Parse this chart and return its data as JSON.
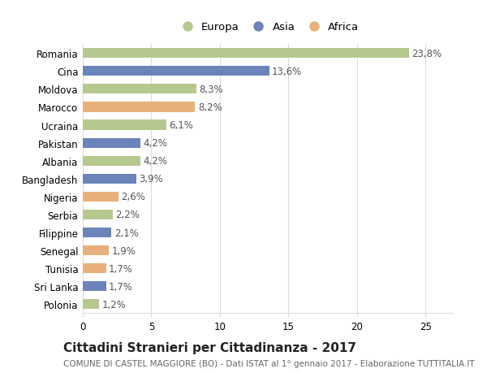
{
  "categories": [
    "Romania",
    "Cina",
    "Moldova",
    "Marocco",
    "Ucraina",
    "Pakistan",
    "Albania",
    "Bangladesh",
    "Nigeria",
    "Serbia",
    "Filippine",
    "Senegal",
    "Tunisia",
    "Sri Lanka",
    "Polonia"
  ],
  "values": [
    23.8,
    13.6,
    8.3,
    8.2,
    6.1,
    4.2,
    4.2,
    3.9,
    2.6,
    2.2,
    2.1,
    1.9,
    1.7,
    1.7,
    1.2
  ],
  "labels": [
    "23,8%",
    "13,6%",
    "8,3%",
    "8,2%",
    "6,1%",
    "4,2%",
    "4,2%",
    "3,9%",
    "2,6%",
    "2,2%",
    "2,1%",
    "1,9%",
    "1,7%",
    "1,7%",
    "1,2%"
  ],
  "continents": [
    "Europa",
    "Asia",
    "Europa",
    "Africa",
    "Europa",
    "Asia",
    "Europa",
    "Asia",
    "Africa",
    "Europa",
    "Asia",
    "Africa",
    "Africa",
    "Asia",
    "Europa"
  ],
  "colors": {
    "Europa": "#b5c98e",
    "Asia": "#6b85bb",
    "Africa": "#e8b07a"
  },
  "xlim": [
    0,
    27
  ],
  "xticks": [
    0,
    5,
    10,
    15,
    20,
    25
  ],
  "title": "Cittadini Stranieri per Cittadinanza - 2017",
  "subtitle": "COMUNE DI CASTEL MAGGIORE (BO) - Dati ISTAT al 1° gennaio 2017 - Elaborazione TUTTITALIA.IT",
  "bg_color": "#ffffff",
  "grid_color": "#dddddd",
  "bar_height": 0.55,
  "label_fontsize": 8.5,
  "tick_fontsize": 8.5,
  "title_fontsize": 11,
  "subtitle_fontsize": 7.5
}
